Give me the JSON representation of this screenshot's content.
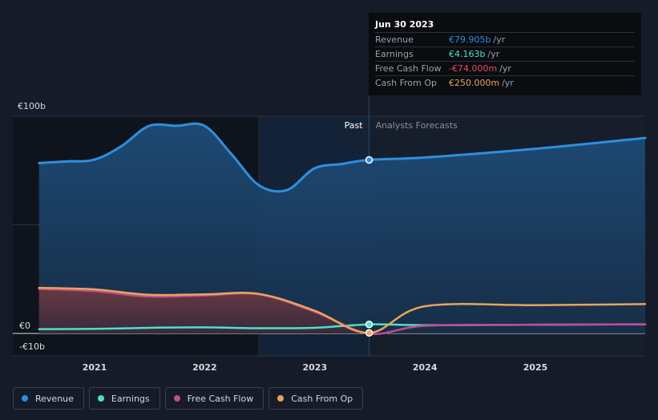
{
  "chart_data": {
    "type": "area",
    "x_ticks": [
      "2021",
      "2022",
      "2023",
      "2024",
      "2025"
    ],
    "y_ticks": [
      "€100b",
      "€0",
      "-€10b"
    ],
    "ylim": [
      -10,
      100
    ],
    "past_label": "Past",
    "forecast_label": "Analysts Forecasts",
    "highlight_date": "2023-06-30",
    "series": [
      {
        "name": "Revenue",
        "color": "#2d8fe0",
        "points": [
          [
            "2020-07-01",
            78.4
          ],
          [
            "2020-10-01",
            79.2
          ],
          [
            "2020-12-31",
            80.0
          ],
          [
            "2021-03-31",
            86.2
          ],
          [
            "2021-06-30",
            95.5
          ],
          [
            "2021-09-30",
            95.6
          ],
          [
            "2021-12-31",
            95.6
          ],
          [
            "2022-03-31",
            82.5
          ],
          [
            "2022-06-30",
            68.2
          ],
          [
            "2022-09-30",
            66.0
          ],
          [
            "2022-12-31",
            76.0
          ],
          [
            "2023-03-31",
            78.0
          ],
          [
            "2023-06-30",
            79.905
          ],
          [
            "2023-12-31",
            81.0
          ],
          [
            "2024-12-31",
            85.0
          ],
          [
            "2025-12-31",
            90.0
          ]
        ]
      },
      {
        "name": "Earnings",
        "color": "#4fe0c8",
        "points": [
          [
            "2020-07-01",
            2.0
          ],
          [
            "2020-12-31",
            2.1
          ],
          [
            "2021-06-30",
            2.6
          ],
          [
            "2021-12-31",
            2.8
          ],
          [
            "2022-06-30",
            2.4
          ],
          [
            "2022-12-31",
            2.6
          ],
          [
            "2023-06-30",
            4.163
          ],
          [
            "2023-12-31",
            3.8
          ],
          [
            "2024-12-31",
            4.0
          ],
          [
            "2025-12-31",
            4.2
          ]
        ]
      },
      {
        "name": "Free Cash Flow",
        "color": "#c44d8a",
        "points": [
          [
            "2020-07-01",
            20.5
          ],
          [
            "2020-12-31",
            19.5
          ],
          [
            "2021-06-30",
            17.0
          ],
          [
            "2021-12-31",
            17.5
          ],
          [
            "2022-06-30",
            18.0
          ],
          [
            "2022-12-31",
            10.0
          ],
          [
            "2023-06-30",
            -0.074
          ],
          [
            "2023-12-31",
            3.5
          ],
          [
            "2024-12-31",
            4.0
          ],
          [
            "2025-12-31",
            4.2
          ]
        ]
      },
      {
        "name": "Cash From Op",
        "color": "#e8a55b",
        "points": [
          [
            "2020-07-01",
            21.0
          ],
          [
            "2020-12-31",
            20.3
          ],
          [
            "2021-06-30",
            17.8
          ],
          [
            "2021-12-31",
            18.0
          ],
          [
            "2022-06-30",
            18.2
          ],
          [
            "2022-12-31",
            10.5
          ],
          [
            "2023-06-30",
            0.25
          ],
          [
            "2023-12-31",
            12.5
          ],
          [
            "2024-12-31",
            13.0
          ],
          [
            "2025-12-31",
            13.5
          ]
        ]
      }
    ]
  },
  "tooltip": {
    "date": "Jun 30 2023",
    "rows": [
      {
        "label": "Revenue",
        "value": "€79.905b",
        "unit": "/yr",
        "color": "#2d8fe0"
      },
      {
        "label": "Earnings",
        "value": "€4.163b",
        "unit": "/yr",
        "color": "#4fe0c8"
      },
      {
        "label": "Free Cash Flow",
        "value": "-€74.000m",
        "unit": "/yr",
        "color": "#e84a5f"
      },
      {
        "label": "Cash From Op",
        "value": "€250.000m",
        "unit": "/yr",
        "color": "#e8a55b"
      }
    ]
  },
  "legend": [
    {
      "label": "Revenue",
      "color": "#2d8fe0"
    },
    {
      "label": "Earnings",
      "color": "#4fe0c8"
    },
    {
      "label": "Free Cash Flow",
      "color": "#c44d8a"
    },
    {
      "label": "Cash From Op",
      "color": "#e8a55b"
    }
  ]
}
